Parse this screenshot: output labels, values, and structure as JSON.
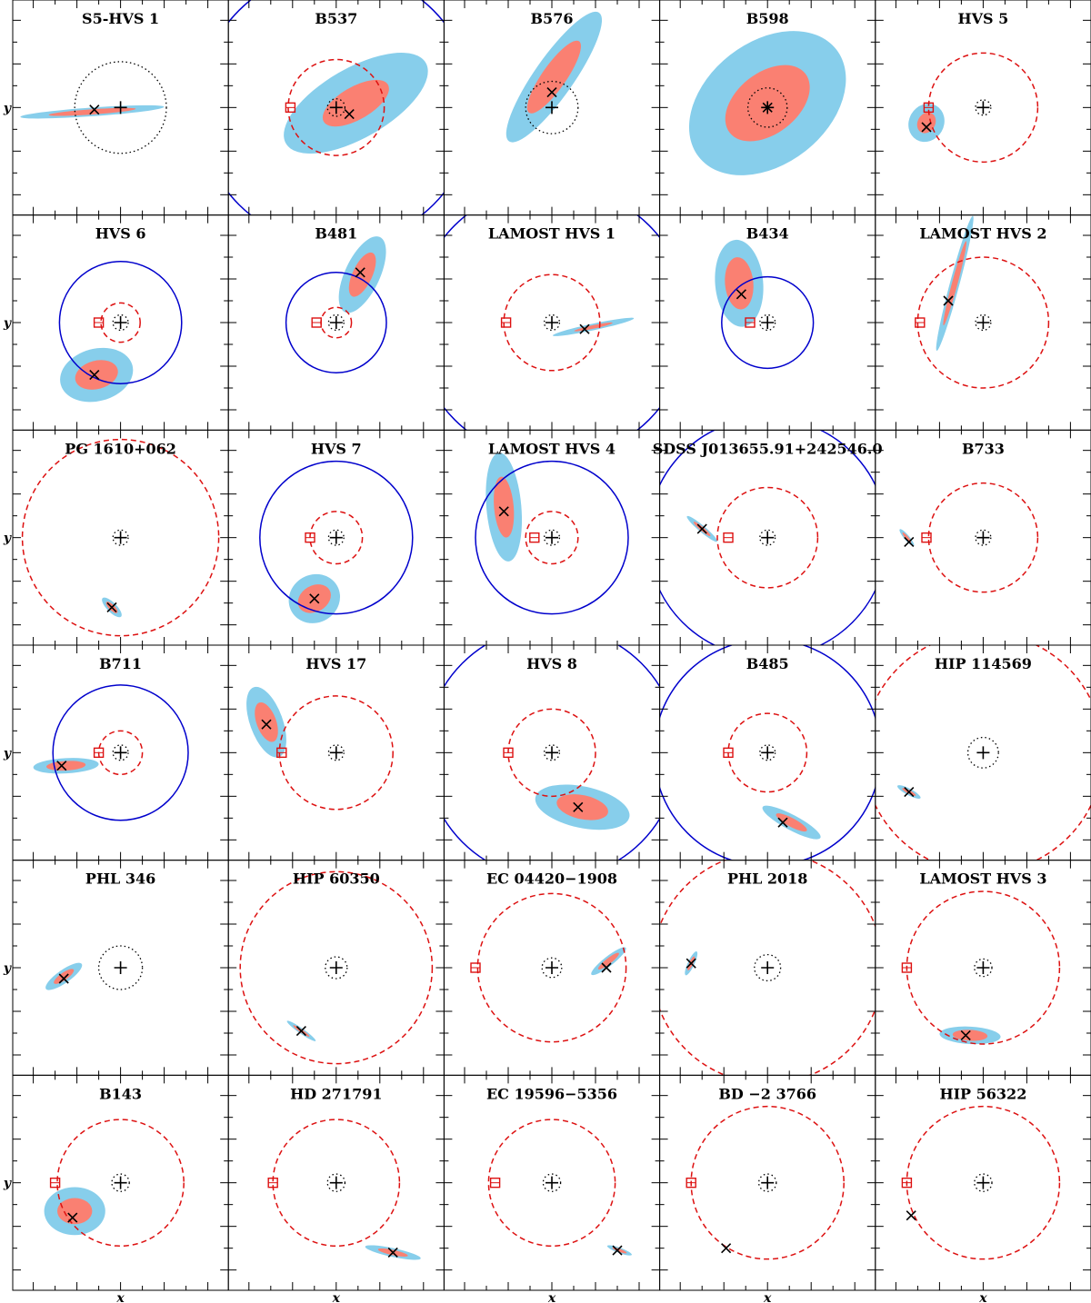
{
  "chart_data": {
    "type": "scatter",
    "grid": {
      "rows": 6,
      "cols": 5
    },
    "xlabel": "x",
    "ylabel": "y",
    "colors": {
      "outer": "#87ceeb",
      "inner": "#fa8072",
      "sun_orbit": "#dd1111",
      "lmc_orbit": "#0000cc",
      "frame": "#000000"
    },
    "panels": [
      {
        "title": "S5-HVS 1",
        "cross": [
          -1.2,
          -0.1
        ],
        "sun": null,
        "dotted_r": 2.1,
        "solid": null,
        "dashed": null,
        "ellipse": {
          "cx": -1.3,
          "cy": -0.2,
          "a1": 3.3,
          "b1": 0.2,
          "a2": 2.0,
          "b2": 0.12,
          "ang": 4
        }
      },
      {
        "title": "B537",
        "cross": [
          0.6,
          -0.3
        ],
        "sun": [
          -2.1,
          0
        ],
        "dotted_r": 0.4,
        "solid": 6.3,
        "dashed": 2.2,
        "ellipse": {
          "cx": 0.9,
          "cy": 0.2,
          "a1": 3.7,
          "b1": 1.6,
          "a2": 1.7,
          "b2": 0.75,
          "ang": 30
        }
      },
      {
        "title": "B576",
        "cross": [
          0,
          0.7
        ],
        "sun": null,
        "dotted_r": 1.2,
        "solid": null,
        "dashed": null,
        "ellipse": {
          "cx": 0.1,
          "cy": 1.4,
          "a1": 3.6,
          "b1": 0.9,
          "a2": 2.0,
          "b2": 0.55,
          "ang": 55
        }
      },
      {
        "title": "B598",
        "cross": [
          0,
          0
        ],
        "sun": null,
        "dotted_r": 0.9,
        "solid": null,
        "dashed": null,
        "ellipse": {
          "cx": 0,
          "cy": 0.2,
          "a1": 4.0,
          "b1": 2.8,
          "a2": 2.2,
          "b2": 1.4,
          "ang": 38
        }
      },
      {
        "title": "HVS 5",
        "cross": [
          -2.6,
          -0.9
        ],
        "sun": [
          -2.5,
          0
        ],
        "dotted_r": 0.35,
        "solid": null,
        "dashed": 2.5,
        "ellipse": {
          "cx": -2.6,
          "cy": -0.7,
          "a1": 0.9,
          "b1": 0.8,
          "a2": 0.5,
          "b2": 0.4,
          "ang": 60
        }
      },
      {
        "title": "HVS 6",
        "cross": [
          -1.2,
          -2.4
        ],
        "sun": [
          -1,
          0
        ],
        "dotted_r": 0.35,
        "solid": 2.8,
        "dashed": 0.9,
        "ellipse": {
          "cx": -1.1,
          "cy": -2.4,
          "a1": 1.7,
          "b1": 1.2,
          "a2": 1.0,
          "b2": 0.65,
          "ang": 15
        }
      },
      {
        "title": "B481",
        "cross": [
          1.1,
          2.3
        ],
        "sun": [
          -0.9,
          0
        ],
        "dotted_r": 0.35,
        "solid": 2.3,
        "dashed": 0.7,
        "ellipse": {
          "cx": 1.2,
          "cy": 2.2,
          "a1": 1.9,
          "b1": 0.8,
          "a2": 1.1,
          "b2": 0.45,
          "ang": 65
        }
      },
      {
        "title": "LAMOST HVS 1",
        "cross": [
          1.5,
          -0.3
        ],
        "sun": [
          -2.1,
          0
        ],
        "dotted_r": 0.35,
        "solid": 6.3,
        "dashed": 2.2,
        "ellipse": {
          "cx": 1.9,
          "cy": -0.2,
          "a1": 1.9,
          "b1": 0.15,
          "a2": 0.9,
          "b2": 0.08,
          "ang": 12
        }
      },
      {
        "title": "B434",
        "cross": [
          -1.2,
          1.3
        ],
        "sun": [
          -0.8,
          0
        ],
        "dotted_r": 0.35,
        "solid": 2.1,
        "dashed": null,
        "ellipse": {
          "cx": -1.3,
          "cy": 1.8,
          "a1": 2.0,
          "b1": 1.1,
          "a2": 1.2,
          "b2": 0.65,
          "ang": 95
        }
      },
      {
        "title": "LAMOST HVS 2",
        "cross": [
          -1.6,
          1.0
        ],
        "sun": [
          -2.9,
          0
        ],
        "dotted_r": 0.35,
        "solid": null,
        "dashed": 3.0,
        "ellipse": {
          "cx": -1.3,
          "cy": 1.8,
          "a1": 3.2,
          "b1": 0.22,
          "a2": 2.0,
          "b2": 0.13,
          "ang": 75
        }
      },
      {
        "title": "PG 1610+062",
        "cross": [
          -0.4,
          -3.2
        ],
        "sun": null,
        "dotted_r": 0.35,
        "solid": null,
        "dashed": 4.5,
        "ellipse": {
          "cx": -0.4,
          "cy": -3.2,
          "a1": 0.6,
          "b1": 0.22,
          "a2": 0.35,
          "b2": 0.13,
          "ang": -45
        }
      },
      {
        "title": "HVS 7",
        "cross": [
          -1,
          -2.8
        ],
        "sun": [
          -1.2,
          0
        ],
        "dotted_r": 0.35,
        "solid": 3.5,
        "dashed": 1.2,
        "ellipse": {
          "cx": -1,
          "cy": -2.8,
          "a1": 1.2,
          "b1": 1.1,
          "a2": 0.8,
          "b2": 0.6,
          "ang": 30
        }
      },
      {
        "title": "LAMOST HVS 4",
        "cross": [
          -2.2,
          1.2
        ],
        "sun": [
          -0.8,
          0
        ],
        "dotted_r": 0.35,
        "solid": 3.5,
        "dashed": 1.2,
        "ellipse": {
          "cx": -2.2,
          "cy": 1.4,
          "a1": 2.5,
          "b1": 0.8,
          "a2": 1.4,
          "b2": 0.45,
          "ang": 95
        }
      },
      {
        "title": "SDSS J013655.91+242546.0",
        "cross": [
          -3.0,
          0.4
        ],
        "sun": [
          -1.8,
          0
        ],
        "dotted_r": 0.35,
        "solid": 5.5,
        "dashed": 2.3,
        "ellipse": {
          "cx": -3.0,
          "cy": 0.4,
          "a1": 0.9,
          "b1": 0.15,
          "a2": 0.5,
          "b2": 0.09,
          "ang": -40
        }
      },
      {
        "title": "B733",
        "cross": [
          -3.4,
          -0.2
        ],
        "sun": [
          -2.6,
          0
        ],
        "dotted_r": 0.35,
        "solid": null,
        "dashed": 2.5,
        "ellipse": {
          "cx": -3.5,
          "cy": 0,
          "a1": 0.5,
          "b1": 0.12,
          "a2": 0.3,
          "b2": 0.07,
          "ang": -50
        }
      },
      {
        "title": "B711",
        "cross": [
          -2.7,
          -0.6
        ],
        "sun": [
          -1,
          0
        ],
        "dotted_r": 0.35,
        "solid": 3.1,
        "dashed": 1.0,
        "ellipse": {
          "cx": -2.5,
          "cy": -0.6,
          "a1": 1.5,
          "b1": 0.35,
          "a2": 0.9,
          "b2": 0.22,
          "ang": 3
        }
      },
      {
        "title": "HVS 17",
        "cross": [
          -3.2,
          1.3
        ],
        "sun": [
          -2.5,
          0
        ],
        "dotted_r": 0.35,
        "solid": null,
        "dashed": 2.6,
        "ellipse": {
          "cx": -3.2,
          "cy": 1.4,
          "a1": 1.7,
          "b1": 0.75,
          "a2": 0.95,
          "b2": 0.45,
          "ang": 110
        }
      },
      {
        "title": "HVS 8",
        "cross": [
          1.2,
          -2.5
        ],
        "sun": [
          -2.0,
          0
        ],
        "dotted_r": 0.35,
        "solid": 5.8,
        "dashed": 2.0,
        "ellipse": {
          "cx": 1.4,
          "cy": -2.5,
          "a1": 2.2,
          "b1": 0.95,
          "a2": 1.2,
          "b2": 0.55,
          "ang": -12
        }
      },
      {
        "title": "B485",
        "cross": [
          0.7,
          -3.2
        ],
        "sun": [
          -1.8,
          0
        ],
        "dotted_r": 0.35,
        "solid": 5.2,
        "dashed": 1.8,
        "ellipse": {
          "cx": 1.1,
          "cy": -3.2,
          "a1": 1.5,
          "b1": 0.35,
          "a2": 0.8,
          "b2": 0.2,
          "ang": -28
        }
      },
      {
        "title": "HIP 114569",
        "cross": [
          -3.4,
          -1.8
        ],
        "sun": null,
        "dotted_r": 0.7,
        "solid": null,
        "dashed": 5.5,
        "ellipse": {
          "cx": -3.4,
          "cy": -1.8,
          "a1": 0.6,
          "b1": 0.15,
          "a2": 0.35,
          "b2": 0.08,
          "ang": -28
        }
      },
      {
        "title": "PHL 346",
        "cross": [
          -2.6,
          -0.5
        ],
        "sun": null,
        "dotted_r": 1.0,
        "solid": null,
        "dashed": null,
        "ellipse": {
          "cx": -2.6,
          "cy": -0.4,
          "a1": 1.0,
          "b1": 0.3,
          "a2": 0.55,
          "b2": 0.17,
          "ang": 35
        }
      },
      {
        "title": "HIP 60350",
        "cross": [
          -1.6,
          -2.9
        ],
        "sun": null,
        "dotted_r": 0.5,
        "solid": null,
        "dashed": 4.4,
        "ellipse": {
          "cx": -1.6,
          "cy": -2.9,
          "a1": 0.8,
          "b1": 0.12,
          "a2": 0.45,
          "b2": 0.07,
          "ang": -35
        }
      },
      {
        "title": "EC 04420−1908",
        "cross": [
          2.5,
          0
        ],
        "sun": [
          -3.5,
          0
        ],
        "dotted_r": 0.45,
        "solid": null,
        "dashed": 3.4,
        "ellipse": {
          "cx": 2.6,
          "cy": 0.3,
          "a1": 1.0,
          "b1": 0.22,
          "a2": 0.6,
          "b2": 0.13,
          "ang": 38
        }
      },
      {
        "title": "PHL 2018",
        "cross": [
          -3.5,
          0.2
        ],
        "sun": null,
        "dotted_r": 0.6,
        "solid": null,
        "dashed": 5.3,
        "ellipse": {
          "cx": -3.5,
          "cy": 0.2,
          "a1": 0.6,
          "b1": 0.15,
          "a2": 0.35,
          "b2": 0.09,
          "ang": 65
        }
      },
      {
        "title": "LAMOST HVS 3",
        "cross": [
          -0.8,
          -3.1
        ],
        "sun": [
          -3.5,
          0
        ],
        "dotted_r": 0.4,
        "solid": null,
        "dashed": 3.5,
        "ellipse": {
          "cx": -0.6,
          "cy": -3.1,
          "a1": 1.4,
          "b1": 0.4,
          "a2": 0.8,
          "b2": 0.25,
          "ang": -3
        }
      },
      {
        "title": "B143",
        "cross": [
          -2.2,
          -1.6
        ],
        "sun": [
          -3.0,
          0
        ],
        "dotted_r": 0.4,
        "solid": null,
        "dashed": 2.9,
        "ellipse": {
          "cx": -2.1,
          "cy": -1.3,
          "a1": 1.4,
          "b1": 1.1,
          "a2": 0.8,
          "b2": 0.6,
          "ang": 0
        }
      },
      {
        "title": "HD 271791",
        "cross": [
          2.6,
          -3.2
        ],
        "sun": [
          -2.9,
          0
        ],
        "dotted_r": 0.4,
        "solid": null,
        "dashed": 2.9,
        "ellipse": {
          "cx": 2.6,
          "cy": -3.2,
          "a1": 1.3,
          "b1": 0.2,
          "a2": 0.7,
          "b2": 0.12,
          "ang": -12
        }
      },
      {
        "title": "EC 19596−5356",
        "cross": [
          3.0,
          -3.1
        ],
        "sun": [
          -2.6,
          0
        ],
        "dotted_r": 0.4,
        "solid": null,
        "dashed": 2.9,
        "ellipse": {
          "cx": 3.1,
          "cy": -3.1,
          "a1": 0.6,
          "b1": 0.12,
          "a2": 0.35,
          "b2": 0.07,
          "ang": -20
        }
      },
      {
        "title": "BD −2 3766",
        "cross": [
          -1.9,
          -3.0
        ],
        "sun": [
          -3.5,
          0
        ],
        "dotted_r": 0.4,
        "solid": null,
        "dashed": 3.5,
        "ellipse": null
      },
      {
        "title": "HIP 56322",
        "cross": [
          -3.3,
          -1.5
        ],
        "sun": [
          -3.5,
          0
        ],
        "dotted_r": 0.4,
        "solid": null,
        "dashed": 3.5,
        "ellipse": null
      }
    ]
  }
}
